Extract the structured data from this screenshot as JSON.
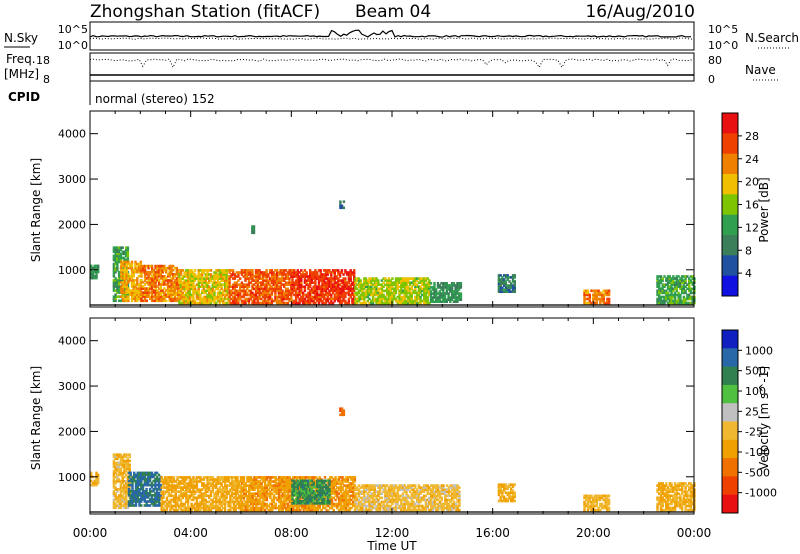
{
  "header": {
    "station": "Zhongshan Station (fitACF)",
    "beam": "Beam 04",
    "date": "16/Aug/2010",
    "cpid_label": "CPID",
    "cpid_value": "normal (stereo) 152"
  },
  "top_panels": {
    "nsky": {
      "label": "N.Sky",
      "ticks": [
        "10^5",
        "10^0"
      ]
    },
    "nsearch": {
      "label": "N.Search",
      "ticks": [
        "10^5",
        "10^0"
      ]
    },
    "freq": {
      "label": "Freq.",
      "unit": "[MHz]",
      "ticks": [
        "18",
        "8"
      ]
    },
    "nave": {
      "label": "Nave",
      "ticks": [
        "80",
        "0"
      ]
    }
  },
  "time_axis": {
    "label": "Time UT",
    "ticks": [
      "00:00",
      "04:00",
      "08:00",
      "12:00",
      "16:00",
      "20:00",
      "00:00"
    ]
  },
  "colors": {
    "power_scale": [
      "#1010e0",
      "#2050a0",
      "#3a7f5a",
      "#30a050",
      "#7fc400",
      "#f0c000",
      "#f08000",
      "#f04000",
      "#e81010"
    ],
    "velocity_scale": [
      "#e81010",
      "#f04000",
      "#f07000",
      "#f0a000",
      "#f0b830",
      "#c0c0c0",
      "#50c040",
      "#308050",
      "#2868a8",
      "#1020c0"
    ]
  },
  "chart_data": [
    {
      "type": "heatmap",
      "title": "Power",
      "ylabel": "Slant Range [km]",
      "xlabel": "Time UT",
      "xlim": [
        0,
        24
      ],
      "ylim": [
        180,
        4500
      ],
      "yticks": [
        "1000",
        "2000",
        "3000",
        "4000"
      ],
      "colorbar": {
        "label": "Power [dB]",
        "ticks": [
          "4",
          "8",
          "12",
          "16",
          "20",
          "24",
          "28"
        ],
        "range": [
          0,
          30
        ]
      },
      "regions": [
        {
          "t0": 0.0,
          "t1": 0.3,
          "r0": 800,
          "r1": 1100,
          "value": 10
        },
        {
          "t0": 0.9,
          "t1": 1.5,
          "r0": 300,
          "r1": 1500,
          "value": 12
        },
        {
          "t0": 1.2,
          "t1": 2.0,
          "r0": 300,
          "r1": 1200,
          "value": 20
        },
        {
          "t0": 2.0,
          "t1": 3.5,
          "r0": 300,
          "r1": 1100,
          "value": 22
        },
        {
          "t0": 3.5,
          "t1": 5.5,
          "r0": 250,
          "r1": 1000,
          "value": 18
        },
        {
          "t0": 5.5,
          "t1": 8.0,
          "r0": 250,
          "r1": 1000,
          "value": 24
        },
        {
          "t0": 8.0,
          "t1": 10.5,
          "r0": 250,
          "r1": 1000,
          "value": 26
        },
        {
          "t0": 10.5,
          "t1": 13.5,
          "r0": 250,
          "r1": 800,
          "value": 16
        },
        {
          "t0": 13.5,
          "t1": 14.7,
          "r0": 280,
          "r1": 700,
          "value": 10
        },
        {
          "t0": 16.2,
          "t1": 16.9,
          "r0": 500,
          "r1": 900,
          "value": 8
        },
        {
          "t0": 19.6,
          "t1": 20.6,
          "r0": 250,
          "r1": 550,
          "value": 22
        },
        {
          "t0": 22.5,
          "t1": 24.0,
          "r0": 250,
          "r1": 850,
          "value": 12
        },
        {
          "t0": 9.9,
          "t1": 10.1,
          "r0": 2350,
          "r1": 2500,
          "value": 6
        },
        {
          "t0": 6.4,
          "t1": 6.5,
          "r0": 1800,
          "r1": 1950,
          "value": 8
        }
      ]
    },
    {
      "type": "heatmap",
      "title": "Velocity",
      "ylabel": "Slant Range [km]",
      "xlabel": "Time UT",
      "xlim": [
        0,
        24
      ],
      "ylim": [
        180,
        4500
      ],
      "yticks": [
        "1000",
        "2000",
        "3000",
        "4000"
      ],
      "colorbar": {
        "label": "Velocity [m s^-1]",
        "ticks": [
          "-1000",
          "-500",
          "-100",
          "-25",
          "25",
          "100",
          "500",
          "1000"
        ],
        "range": [
          -1250,
          1250
        ]
      },
      "regions": [
        {
          "t0": 0.0,
          "t1": 0.3,
          "r0": 800,
          "r1": 1100,
          "value": -200
        },
        {
          "t0": 0.9,
          "t1": 1.6,
          "r0": 300,
          "r1": 1500,
          "value": -150
        },
        {
          "t0": 1.5,
          "t1": 2.8,
          "r0": 350,
          "r1": 1100,
          "value": 800
        },
        {
          "t0": 2.8,
          "t1": 6.0,
          "r0": 250,
          "r1": 1000,
          "value": -300
        },
        {
          "t0": 6.0,
          "t1": 10.5,
          "r0": 250,
          "r1": 1000,
          "value": -400
        },
        {
          "t0": 8.0,
          "t1": 9.5,
          "r0": 400,
          "r1": 900,
          "value": 600
        },
        {
          "t0": 10.5,
          "t1": 14.7,
          "r0": 250,
          "r1": 800,
          "value": -120
        },
        {
          "t0": 16.2,
          "t1": 16.9,
          "r0": 450,
          "r1": 850,
          "value": -300
        },
        {
          "t0": 19.6,
          "t1": 20.6,
          "r0": 250,
          "r1": 600,
          "value": -200
        },
        {
          "t0": 22.5,
          "t1": 24.0,
          "r0": 250,
          "r1": 850,
          "value": -250
        },
        {
          "t0": 9.9,
          "t1": 10.1,
          "r0": 2350,
          "r1": 2500,
          "value": -600
        }
      ]
    }
  ]
}
